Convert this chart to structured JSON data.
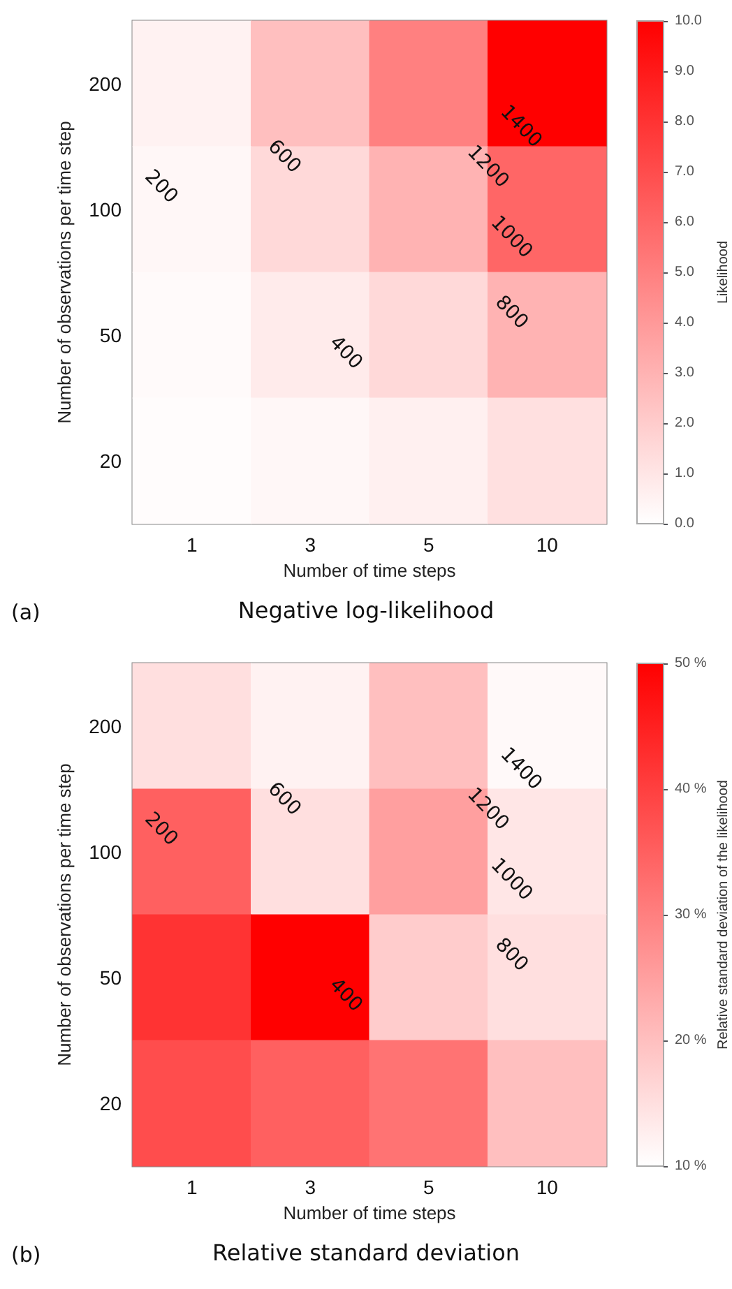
{
  "chart_data": [
    {
      "type": "heatmap",
      "title": "Negative log-likelihood",
      "xlabel": "Number of time steps",
      "ylabel": "Number of observations per time step",
      "clabel": "Likelihood",
      "categories": [
        "1",
        "3",
        "5",
        "10"
      ],
      "y_categories": [
        "200",
        "100",
        "50",
        "20"
      ],
      "cells": [
        [
          0.5,
          2.5,
          5.0,
          10.0
        ],
        [
          0.3,
          1.5,
          3.0,
          6.0
        ],
        [
          0.2,
          0.8,
          1.5,
          3.0
        ],
        [
          0.1,
          0.3,
          0.6,
          1.2
        ]
      ],
      "clim": [
        0,
        10
      ],
      "cticks": [
        {
          "value": 0,
          "label": "0.0"
        },
        {
          "value": 1,
          "label": "1.0"
        },
        {
          "value": 2,
          "label": "2.0"
        },
        {
          "value": 3,
          "label": "3.0"
        },
        {
          "value": 4,
          "label": "4.0"
        },
        {
          "value": 5,
          "label": "5.0"
        },
        {
          "value": 6,
          "label": "6.0"
        },
        {
          "value": 7,
          "label": "7.0"
        },
        {
          "value": 8,
          "label": "8.0"
        },
        {
          "value": 9,
          "label": "9.0"
        },
        {
          "value": 10,
          "label": "10.0"
        }
      ],
      "annotations": [
        "(a)",
        "200",
        "400",
        "600",
        "800",
        "1000",
        "1200",
        "1400"
      ]
    },
    {
      "type": "heatmap",
      "title": "Relative standard deviation",
      "xlabel": "Number of time steps",
      "ylabel": "Number of observations per time step",
      "clabel": "Relative standard deviation of the likelihood",
      "categories": [
        "1",
        "3",
        "5",
        "10"
      ],
      "y_categories": [
        "200",
        "100",
        "50",
        "20"
      ],
      "cells": [
        [
          15,
          12,
          20,
          11
        ],
        [
          35,
          15,
          25,
          14
        ],
        [
          42,
          50,
          18,
          15
        ],
        [
          38,
          35,
          32,
          20
        ]
      ],
      "clim": [
        10,
        50
      ],
      "cticks": [
        {
          "value": 10,
          "label": "10 %"
        },
        {
          "value": 20,
          "label": "20 %"
        },
        {
          "value": 30,
          "label": "30 %"
        },
        {
          "value": 40,
          "label": "40 %"
        },
        {
          "value": 50,
          "label": "50 %"
        }
      ],
      "annotations": [
        "(b)",
        "200",
        "400",
        "600",
        "800",
        "1000",
        "1200",
        "1400"
      ]
    }
  ]
}
